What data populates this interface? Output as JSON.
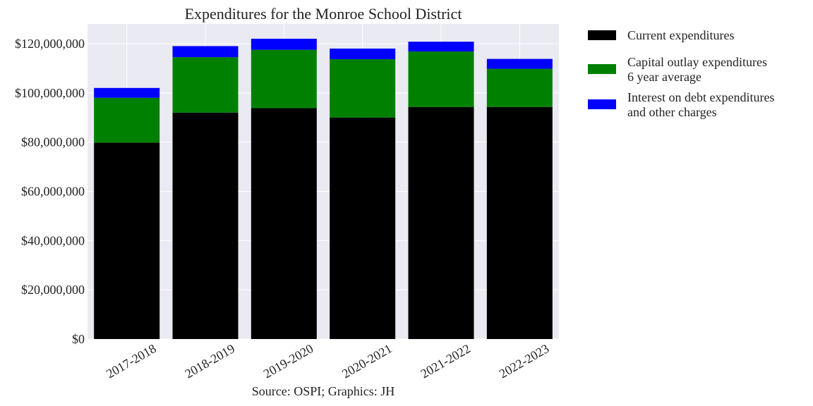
{
  "chart_data": {
    "type": "bar",
    "stacked": true,
    "title": "Expenditures for the Monroe School District",
    "source": "Source: OSPI; Graphics: JH",
    "categories": [
      "2017-2018",
      "2018-2019",
      "2019-2020",
      "2020-2021",
      "2021-2022",
      "2022-2023"
    ],
    "series": [
      {
        "name": "Current expenditures",
        "color": "#000000",
        "values": [
          79800000,
          92000000,
          93800000,
          90000000,
          94300000,
          94300000
        ]
      },
      {
        "name": "Capital outlay expenditures\n6 year average",
        "color": "#008000",
        "values": [
          18200000,
          22500000,
          23700000,
          23700000,
          22500000,
          15500000
        ]
      },
      {
        "name": "Interest on debt expenditures\nand other charges",
        "color": "#0000ff",
        "values": [
          4000000,
          4500000,
          4500000,
          4300000,
          4000000,
          4000000
        ]
      }
    ],
    "y_ticks": [
      "$0",
      "$20,000,000",
      "$40,000,000",
      "$60,000,000",
      "$80,000,000",
      "$100,000,000",
      "$120,000,000"
    ],
    "ylim": [
      0,
      128000000
    ],
    "grid": true,
    "legend_position": "right-top"
  }
}
